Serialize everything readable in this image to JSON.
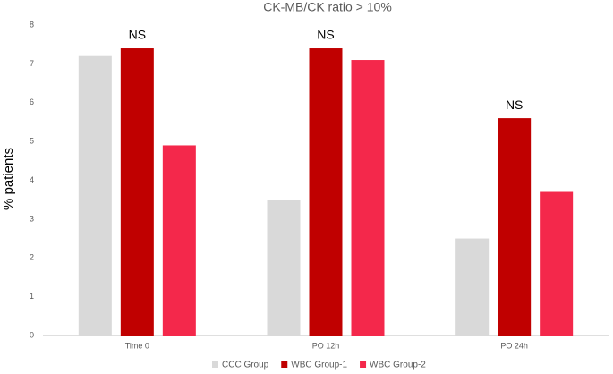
{
  "chart_data": {
    "type": "bar",
    "title": "CK-MB/CK ratio > 10%",
    "ylabel": "% patients",
    "categories": [
      "Time 0",
      "PO 12h",
      "PO 24h"
    ],
    "series": [
      {
        "name": "CCC Group",
        "color": "#d9d9d9",
        "values": [
          7.2,
          3.5,
          2.5
        ]
      },
      {
        "name": "WBC Group-1",
        "color": "#c00000",
        "values": [
          7.4,
          7.4,
          5.6
        ]
      },
      {
        "name": "WBC Group-2",
        "color": "#f4284b",
        "values": [
          4.9,
          7.1,
          3.7
        ]
      }
    ],
    "annotations": [
      "NS",
      "NS",
      "NS"
    ],
    "ylim": [
      0,
      8
    ],
    "yticks": [
      0,
      1,
      2,
      3,
      4,
      5,
      6,
      7,
      8
    ],
    "grid": false,
    "legend": "bottom"
  }
}
